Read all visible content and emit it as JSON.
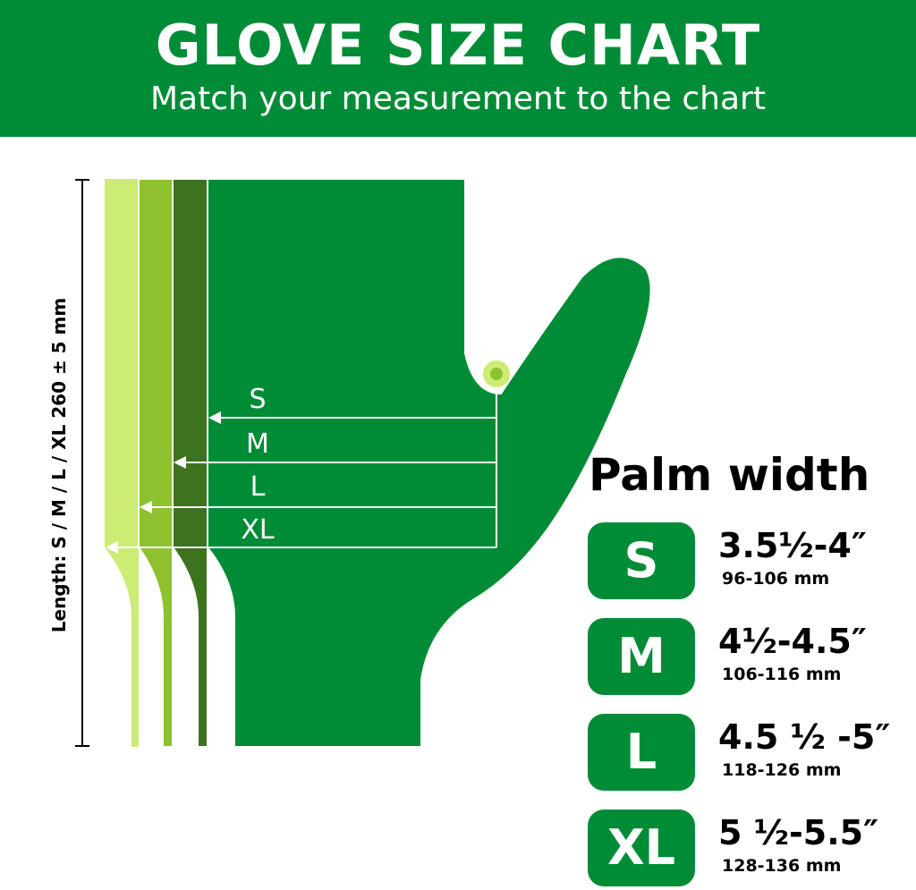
{
  "header": {
    "title": "GLOVE SIZE CHART",
    "subtitle": "Match your measurement to the chart"
  },
  "length_label": "Length:  S / M / L / XL  260 ± 5 mm",
  "diagram": {
    "size_labels": [
      "S",
      "M",
      "L",
      "XL"
    ],
    "colors": {
      "S": "#008c36",
      "M": "#3d731e",
      "L": "#8dc22e",
      "XL": "#ccec74"
    }
  },
  "palm": {
    "title": "Palm width",
    "sizes": [
      {
        "size": "S",
        "inches": "3.5½-4″",
        "mm": "96-106 mm"
      },
      {
        "size": "M",
        "inches": "4½-4.5″",
        "mm": "106-116 mm"
      },
      {
        "size": "L",
        "inches": "4.5 ½ -5″",
        "mm": "118-126 mm"
      },
      {
        "size": "XL",
        "inches": "5 ½-5.5″",
        "mm": "128-136 mm"
      }
    ]
  }
}
